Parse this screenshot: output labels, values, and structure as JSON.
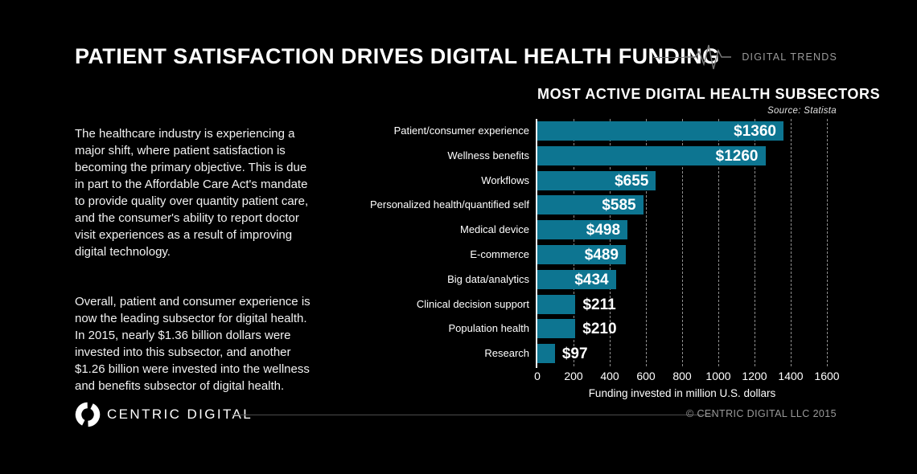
{
  "header": {
    "title": "PATIENT SATISFACTION DRIVES DIGITAL HEALTH FUNDING",
    "brand_label": "DIGITAL TRENDS"
  },
  "intro": {
    "paragraph1": "The healthcare industry is experiencing a\nmajor shift, where patient satisfaction is\nbecoming the primary objective. This is due\nin part to the Affordable Care Act's mandate\nto provide quality over quantity patient care,\nand the consumer's ability to report doctor\nvisit experiences as a result of improving\ndigital technology.",
    "paragraph2": "Overall, patient and consumer experience is\nnow the leading subsector for digital health.\nIn 2015, nearly $1.36 billion dollars were\ninvested into this subsector, and another\n$1.26 billion were invested into the wellness\nand benefits subsector of digital health."
  },
  "chart_data": {
    "type": "bar",
    "orientation": "horizontal",
    "title": "MOST ACTIVE DIGITAL HEALTH SUBSECTORS",
    "source": "Source:  Statista",
    "categories": [
      "Patient/consumer experience",
      "Wellness benefits",
      "Workflows",
      "Personalized health/quantified self",
      "Medical device",
      "E-commerce",
      "Big data/analytics",
      "Clinical decision support",
      "Population health",
      "Research"
    ],
    "values": [
      1360,
      1260,
      655,
      585,
      498,
      489,
      434,
      211,
      210,
      97
    ],
    "value_prefix": "$",
    "xlabel": "Funding invested in million U.S. dollars",
    "xlim": [
      0,
      1600
    ],
    "xticks": [
      0,
      200,
      400,
      600,
      800,
      1000,
      1200,
      1400,
      1600
    ],
    "grid": "vertical-dashed",
    "legend": "none",
    "bar_color": "#0d7591",
    "inside_label_min": 400
  },
  "footer": {
    "brand": "CENTRIC DIGITAL",
    "copyright": "© CENTRIC DIGITAL LLC 2015"
  },
  "colors": {
    "background": "#000000",
    "bar": "#0d7591",
    "grid": "#8f8f8f",
    "muted_text": "#9a9a9a"
  }
}
